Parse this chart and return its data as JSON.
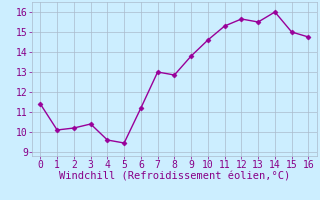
{
  "x": [
    0,
    1,
    2,
    3,
    4,
    5,
    6,
    7,
    8,
    9,
    10,
    11,
    12,
    13,
    14,
    15,
    16
  ],
  "y": [
    11.4,
    10.1,
    10.2,
    10.4,
    9.6,
    9.45,
    11.2,
    13.0,
    12.85,
    13.8,
    14.6,
    15.3,
    15.65,
    15.5,
    16.0,
    15.0,
    14.75
  ],
  "line_color": "#990099",
  "marker": "D",
  "marker_size": 2.5,
  "bg_color": "#cceeff",
  "grid_color": "#aabbcc",
  "xlabel": "Windchill (Refroidissement éolien,°C)",
  "xlabel_fontsize": 7.5,
  "xlabel_color": "#880088",
  "xlim": [
    -0.5,
    16.5
  ],
  "ylim": [
    8.8,
    16.5
  ],
  "yticks": [
    9,
    10,
    11,
    12,
    13,
    14,
    15,
    16
  ],
  "xticks": [
    0,
    1,
    2,
    3,
    4,
    5,
    6,
    7,
    8,
    9,
    10,
    11,
    12,
    13,
    14,
    15,
    16
  ],
  "tick_fontsize": 7,
  "tick_color": "#880088",
  "linewidth": 1.0
}
